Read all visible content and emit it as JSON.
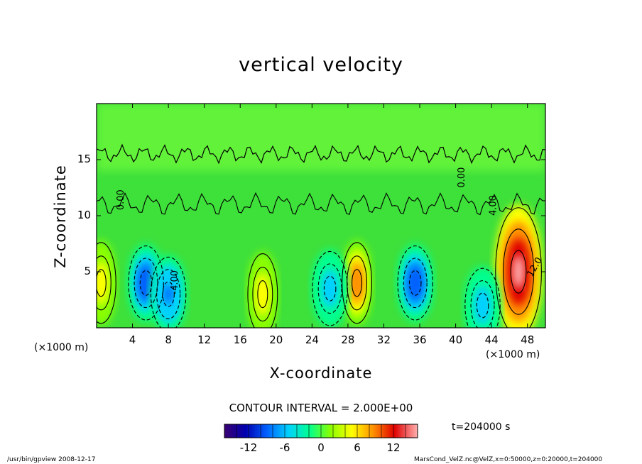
{
  "title": "vertical velocity",
  "chart_data": {
    "type": "heatmap",
    "title": "vertical velocity",
    "xlabel": "X-coordinate",
    "ylabel": "Z-coordinate",
    "x_unit": "(×1000 m)",
    "x_ticks": [
      4,
      8,
      12,
      16,
      20,
      24,
      28,
      32,
      36,
      40,
      44,
      48
    ],
    "y_ticks": [
      5,
      10,
      15
    ],
    "xlim": [
      0,
      50
    ],
    "ylim": [
      0,
      20
    ],
    "contour_interval": "CONTOUR INTERVAL = 2.000E+00",
    "time_label": "t=204000 s",
    "colorbar": {
      "ticks": [
        -12,
        -6,
        0,
        6,
        12
      ],
      "range": [
        -16,
        16
      ],
      "colors": [
        "#3a0070",
        "#0000b0",
        "#0060ff",
        "#00d0ff",
        "#00ff90",
        "#8aff00",
        "#ffff00",
        "#ff9000",
        "#e00000",
        "#ffb0b0"
      ]
    },
    "contour_labels": [
      "0.00",
      "4.00",
      "-4.00",
      "12.0"
    ],
    "features": [
      {
        "kind": "updraft",
        "x": 18.5,
        "z": 3.0,
        "peak": 6
      },
      {
        "kind": "updraft",
        "x": 29.0,
        "z": 4.0,
        "peak": 10
      },
      {
        "kind": "updraft",
        "x": 47.0,
        "z": 5.0,
        "peak": 16
      },
      {
        "kind": "updraft",
        "x": 0.5,
        "z": 4.0,
        "peak": 6
      },
      {
        "kind": "downdraft",
        "x": 5.5,
        "z": 4.0,
        "peak": -10
      },
      {
        "kind": "downdraft",
        "x": 8.0,
        "z": 3.0,
        "peak": -8
      },
      {
        "kind": "downdraft",
        "x": 26.0,
        "z": 3.5,
        "peak": -6
      },
      {
        "kind": "downdraft",
        "x": 35.5,
        "z": 4.0,
        "peak": -10
      },
      {
        "kind": "downdraft",
        "x": 43.0,
        "z": 2.0,
        "peak": -6
      }
    ]
  },
  "footer": {
    "left": "/usr/bin/gpview  2008-12-17",
    "right": "MarsCond_VelZ.nc@VelZ,x=0:50000,z=0:20000,t=204000"
  }
}
